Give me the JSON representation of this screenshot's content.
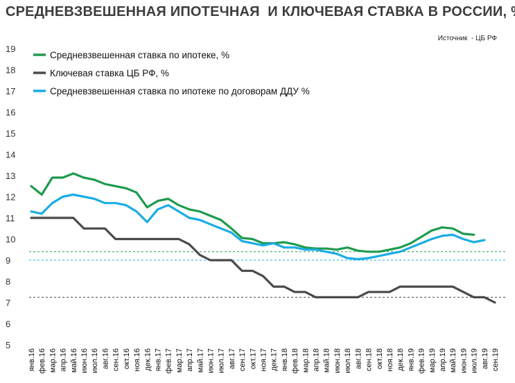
{
  "title": "СРЕДНЕВЗВЕШЕННАЯ ИПОТЕЧНАЯ  И КЛЮЧЕВАЯ СТАВКА В РОССИИ, %",
  "source": "Источник  - ЦБ РФ",
  "chart_data": {
    "type": "line",
    "ylim": [
      5,
      19
    ],
    "yticks": [
      5,
      6,
      7,
      8,
      9,
      10,
      11,
      12,
      13,
      14,
      15,
      16,
      17,
      18,
      19
    ],
    "grid": false,
    "legend_position": "top-left",
    "categories": [
      "янв.16",
      "фев.16",
      "мар.16",
      "апр.16",
      "май.16",
      "июн.16",
      "июл.16",
      "авг.16",
      "сен.16",
      "окт.16",
      "ноя.16",
      "дек.16",
      "янв.17",
      "фев.17",
      "мар.17",
      "апр.17",
      "май.17",
      "июн.17",
      "июл.17",
      "авг.17",
      "сен.17",
      "окт.17",
      "ноя.17",
      "дек.17",
      "янв.18",
      "фев.18",
      "мар.18",
      "апр.18",
      "май.18",
      "июн.18",
      "июл.18",
      "авг.18",
      "сен.18",
      "окт.18",
      "ноя.18",
      "дек.18",
      "янв.19",
      "фев.19",
      "мар.19",
      "апр.19",
      "май.19",
      "июн.19",
      "июл.19",
      "авг.19",
      "сен.19"
    ],
    "x_tick_labels": [
      "янв.16",
      "фев.16",
      "мар.16",
      "апр.16",
      "май.16",
      "июн.16",
      "июл.16",
      "авг.16",
      "сен.16",
      "окт.16",
      "ноя.16",
      "дек.16",
      "янв.17",
      "фев.17",
      "мар.17",
      "апр.17",
      "май.17",
      "июн.17",
      "июл.17",
      "авг.17",
      "сен.17",
      "окт.17",
      "ноя.17",
      "дек.17",
      "янв.18",
      "фев.18",
      "мар.18",
      "апр.18",
      "май.18",
      "июн.18",
      "июл.18",
      "авг.18",
      "сен.18",
      "окт.18",
      "ноя.18",
      "дек.18",
      "янв.19",
      "фев.19",
      "мар.19",
      "апр.19",
      "май.19",
      "июн.19",
      "июл.19",
      "авг.19",
      "сен.19"
    ],
    "series": [
      {
        "name": "Средневзвешенная ставка по ипотеке, %",
        "color": "#1e9a4e",
        "values": [
          12.5,
          12.1,
          12.9,
          12.9,
          13.1,
          12.9,
          12.8,
          12.6,
          12.5,
          12.4,
          12.2,
          11.5,
          11.8,
          11.9,
          11.6,
          11.4,
          11.3,
          11.1,
          10.9,
          10.5,
          10.05,
          10.0,
          9.8,
          9.8,
          9.85,
          9.75,
          9.6,
          9.55,
          9.55,
          9.5,
          9.6,
          9.45,
          9.4,
          9.4,
          9.5,
          9.6,
          9.8,
          10.1,
          10.4,
          10.55,
          10.5,
          10.25,
          10.2,
          null,
          null
        ]
      },
      {
        "name": "Ключевая ставка ЦБ РФ, %",
        "color": "#4a4a4a",
        "values": [
          11,
          11,
          11,
          11,
          11,
          10.5,
          10.5,
          10.5,
          10,
          10,
          10,
          10,
          10,
          10,
          10,
          9.75,
          9.25,
          9,
          9,
          9,
          8.5,
          8.5,
          8.25,
          7.75,
          7.75,
          7.5,
          7.5,
          7.25,
          7.25,
          7.25,
          7.25,
          7.25,
          7.5,
          7.5,
          7.5,
          7.75,
          7.75,
          7.75,
          7.75,
          7.75,
          7.75,
          7.5,
          7.25,
          7.25,
          7.0
        ]
      },
      {
        "name": "Средневзвешенная ставка по ипотеке по договорам ДДУ %",
        "color": "#1aace6",
        "values": [
          11.3,
          11.2,
          11.7,
          12.0,
          12.1,
          12.0,
          11.9,
          11.7,
          11.7,
          11.6,
          11.3,
          10.8,
          11.4,
          11.6,
          11.3,
          11.0,
          10.9,
          10.7,
          10.5,
          10.3,
          9.9,
          9.8,
          9.7,
          9.8,
          9.6,
          9.6,
          9.5,
          9.5,
          9.4,
          9.3,
          9.1,
          9.05,
          9.1,
          9.2,
          9.3,
          9.4,
          9.6,
          9.8,
          10.0,
          10.15,
          10.2,
          10.0,
          9.85,
          9.95,
          null
        ]
      }
    ],
    "reference_lines": [
      {
        "value": 9.4,
        "color": "#1e9a4e"
      },
      {
        "value": 9.0,
        "color": "#1aace6"
      },
      {
        "value": 7.25,
        "color": "#4a4a4a"
      }
    ]
  }
}
